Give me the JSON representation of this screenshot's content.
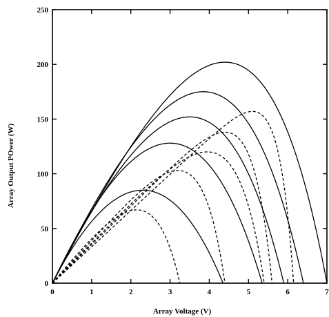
{
  "chart_data": {
    "type": "line",
    "xlabel": "Array Voltage (V)",
    "ylabel": "Array Output POwer (W)",
    "xlim": [
      0,
      7
    ],
    "ylim": [
      0,
      250
    ],
    "xticks": [
      "0",
      "1",
      "2",
      "3",
      "4",
      "5",
      "6",
      "7"
    ],
    "yticks": [
      "0",
      "50",
      "100",
      "150",
      "200",
      "250"
    ],
    "grid": false,
    "legend": "none",
    "series": [
      {
        "style": "solid",
        "color": "#000000",
        "voc": 4.35,
        "vmp": 2.3,
        "pmax": 85
      },
      {
        "style": "solid",
        "color": "#000000",
        "voc": 5.35,
        "vmp": 3.0,
        "pmax": 128
      },
      {
        "style": "solid",
        "color": "#000000",
        "voc": 5.9,
        "vmp": 3.5,
        "pmax": 152
      },
      {
        "style": "solid",
        "color": "#000000",
        "voc": 6.4,
        "vmp": 3.85,
        "pmax": 175
      },
      {
        "style": "solid",
        "color": "#000000",
        "voc": 7.0,
        "vmp": 4.4,
        "pmax": 202
      },
      {
        "style": "dashed",
        "color": "#000000",
        "voc": 3.25,
        "vmp": 2.15,
        "pmax": 67
      },
      {
        "style": "dashed",
        "color": "#000000",
        "voc": 4.4,
        "vmp": 3.2,
        "pmax": 103
      },
      {
        "style": "dashed",
        "color": "#000000",
        "voc": 5.4,
        "vmp": 3.95,
        "pmax": 120
      },
      {
        "style": "dashed",
        "color": "#000000",
        "voc": 5.6,
        "vmp": 4.4,
        "pmax": 138
      },
      {
        "style": "dashed",
        "color": "#000000",
        "voc": 6.15,
        "vmp": 5.1,
        "pmax": 157
      }
    ]
  }
}
